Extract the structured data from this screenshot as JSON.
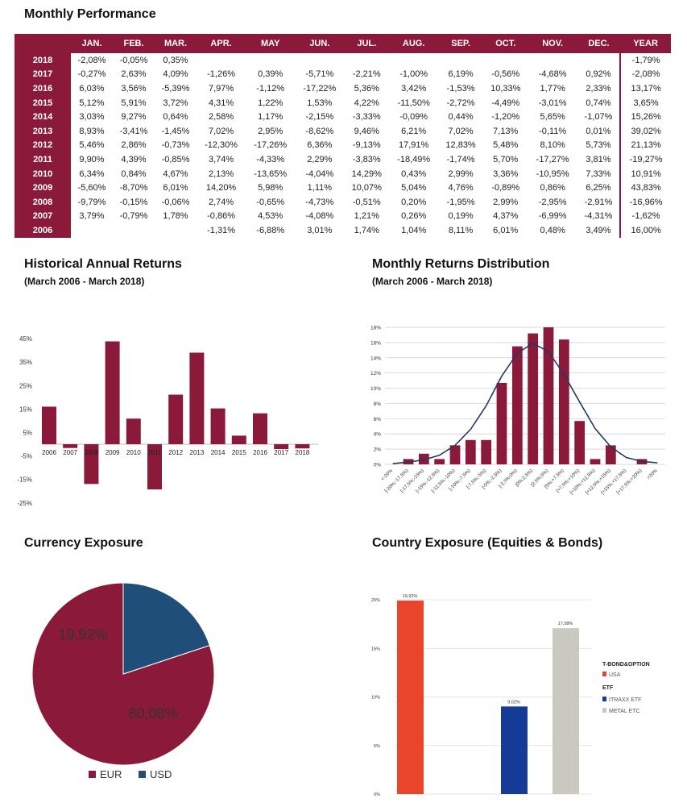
{
  "perf": {
    "title": "Monthly Performance",
    "columns": [
      "",
      "JAN.",
      "FEB.",
      "MAR.",
      "APR.",
      "MAY",
      "JUN.",
      "JUL.",
      "AUG.",
      "SEP.",
      "OCT.",
      "NOV.",
      "DEC.",
      "YEAR"
    ],
    "rows": [
      [
        "2018",
        "-2,08%",
        "-0,05%",
        "0,35%",
        "",
        "",
        "",
        "",
        "",
        "",
        "",
        "",
        "",
        "-1,79%"
      ],
      [
        "2017",
        "-0,27%",
        "2,63%",
        "4,09%",
        "-1,26%",
        "0,39%",
        "-5,71%",
        "-2,21%",
        "-1,00%",
        "6,19%",
        "-0,56%",
        "-4,68%",
        "0,92%",
        "-2,08%"
      ],
      [
        "2016",
        "6,03%",
        "3,56%",
        "-5,39%",
        "7,97%",
        "-1,12%",
        "-17,22%",
        "5,36%",
        "3,42%",
        "-1,53%",
        "10,33%",
        "1,77%",
        "2,33%",
        "13,17%"
      ],
      [
        "2015",
        "5,12%",
        "5,91%",
        "3,72%",
        "4,31%",
        "1,22%",
        "1,53%",
        "4,22%",
        "-11,50%",
        "-2,72%",
        "-4,49%",
        "-3,01%",
        "0,74%",
        "3,65%"
      ],
      [
        "2014",
        "3,03%",
        "9,27%",
        "0,64%",
        "2,58%",
        "1,17%",
        "-2,15%",
        "-3,33%",
        "-0,09%",
        "0,44%",
        "-1,20%",
        "5,65%",
        "-1,07%",
        "15,26%"
      ],
      [
        "2013",
        "8,93%",
        "-3,41%",
        "-1,45%",
        "7,02%",
        "2,95%",
        "-8,62%",
        "9,46%",
        "6,21%",
        "7,02%",
        "7,13%",
        "-0,11%",
        "0,01%",
        "39,02%"
      ],
      [
        "2012",
        "5,46%",
        "2,86%",
        "-0,73%",
        "-12,30%",
        "-17,26%",
        "6,36%",
        "-9,13%",
        "17,91%",
        "12,83%",
        "5,48%",
        "8,10%",
        "5,73%",
        "21,13%"
      ],
      [
        "2011",
        "9,90%",
        "4,39%",
        "-0,85%",
        "3,74%",
        "-4,33%",
        "2,29%",
        "-3,83%",
        "-18,49%",
        "-1,74%",
        "5,70%",
        "-17,27%",
        "3,81%",
        "-19,27%"
      ],
      [
        "2010",
        "6,34%",
        "0,84%",
        "4,67%",
        "2,13%",
        "-13,65%",
        "-4,04%",
        "14,29%",
        "0,43%",
        "2,99%",
        "3,36%",
        "-10,95%",
        "7,33%",
        "10,91%"
      ],
      [
        "2009",
        "-5,60%",
        "-8,70%",
        "6,01%",
        "14,20%",
        "5,98%",
        "1,11%",
        "10,07%",
        "5,04%",
        "4,76%",
        "-0,89%",
        "0,86%",
        "6,25%",
        "43,83%"
      ],
      [
        "2008",
        "-9,79%",
        "-0,15%",
        "-0,06%",
        "2,74%",
        "-0,65%",
        "-4,73%",
        "-0,51%",
        "0,20%",
        "-1,95%",
        "2,99%",
        "-2,95%",
        "-2,91%",
        "-16,96%"
      ],
      [
        "2007",
        "3,79%",
        "-0,79%",
        "1,78%",
        "-0,86%",
        "4,53%",
        "-4,08%",
        "1,21%",
        "0,26%",
        "0,19%",
        "4,37%",
        "-6,99%",
        "-4,31%",
        "-1,62%"
      ],
      [
        "2006",
        "",
        "",
        "",
        "-1,31%",
        "-6,88%",
        "3,01%",
        "1,74%",
        "1,04%",
        "8,11%",
        "6,01%",
        "0,48%",
        "3,49%",
        "16,00%"
      ]
    ]
  },
  "colors": {
    "maroon": "#8b1a3a",
    "navy": "#1f4e79",
    "line": "#1f3b63",
    "usa": "#e8452a",
    "itraxx": "#143c96",
    "metal": "#c9c9c0"
  },
  "chart_data": [
    {
      "type": "bar",
      "title": "Historical Annual Returns",
      "subtitle": "(March 2006 - March 2018)",
      "categories": [
        "2006",
        "2007",
        "2008",
        "2009",
        "2010",
        "2011",
        "2012",
        "2013",
        "2014",
        "2015",
        "2016",
        "2017",
        "2018"
      ],
      "values": [
        16.0,
        -1.62,
        -16.96,
        43.83,
        10.91,
        -19.27,
        21.13,
        39.02,
        15.26,
        3.65,
        13.17,
        -2.08,
        -1.79
      ],
      "yticks": [
        "45%",
        "35%",
        "25%",
        "15%",
        "5%",
        "-5%",
        "-15%",
        "-25%"
      ],
      "ylim": [
        -25,
        45
      ],
      "grid": false
    },
    {
      "type": "bar+line",
      "title": "Monthly Returns Distribution",
      "subtitle": "(March 2006 - March 2018)",
      "categories": [
        "<-20%",
        "[-20%;-17,5%)",
        "[-17,5%;-15%)",
        "[-15%;-12,5%)",
        "[-12,5%;-10%)",
        "[-10%;-7,5%)",
        "[-7,5%;-5%)",
        "[-5%;-2,5%)",
        "[-2,5%;0%)",
        "[0%;2,5%)",
        "[2,5%;5%)",
        "[5%;+7,5%)",
        "[+7,5%;+10%)",
        "[+10%;+12,5%)",
        "[+12,5%;+15%)",
        "[+15%;+17,5%)",
        "[+17,5%;+20%)",
        ">20%"
      ],
      "values": [
        0,
        0.7,
        1.4,
        0.7,
        2.5,
        3.2,
        3.2,
        10.7,
        15.5,
        17.2,
        18.0,
        16.4,
        5.7,
        0.7,
        2.5,
        0,
        0.7,
        0
      ],
      "curve": [
        0.1,
        0.3,
        0.6,
        1.2,
        2.5,
        4.6,
        7.7,
        11.6,
        14.6,
        15.9,
        14.8,
        11.8,
        8.2,
        4.7,
        2.3,
        0.9,
        0.4,
        0.2
      ],
      "yticks": [
        "0%",
        "2%",
        "4%",
        "6%",
        "8%",
        "10%",
        "12%",
        "14%",
        "16%",
        "18%"
      ],
      "ylim": [
        0,
        18
      ],
      "grid": true
    },
    {
      "type": "pie",
      "title": "Currency Exposure",
      "categories": [
        "EUR",
        "USD"
      ],
      "values": [
        80.08,
        19.92
      ],
      "labels": [
        "80,08%",
        "19,92%"
      ],
      "legend": "bottom"
    },
    {
      "type": "bar",
      "title": "Country Exposure (Equities & Bonds)",
      "categories": [
        "USA",
        "ITRAXX ETF",
        "METAL ETC"
      ],
      "values": [
        19.92,
        9.02,
        17.08
      ],
      "labels": [
        "19,92%",
        "9,02%",
        "17,08%"
      ],
      "legend_groups": [
        "T-BOND&OPTION",
        "ETF"
      ],
      "yticks": [
        "0%",
        "5%",
        "10%",
        "15%",
        "20%"
      ],
      "ylim": [
        0,
        20
      ],
      "legend": "right",
      "grid": true
    }
  ]
}
